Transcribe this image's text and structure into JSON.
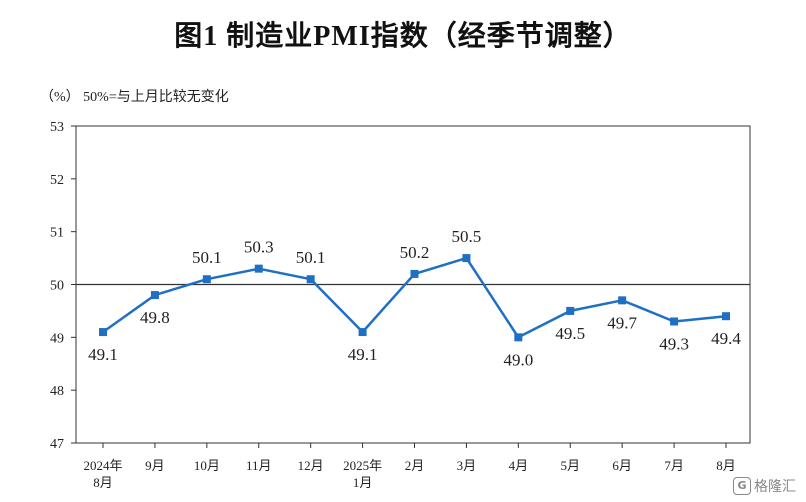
{
  "title": "图1  制造业PMI指数（经季节调整）",
  "unit_note": "（%）  50%=与上月比较无变化",
  "watermark": {
    "text": "格隆汇",
    "icon": "G"
  },
  "chart_data": {
    "type": "line",
    "categories": [
      [
        "2024年",
        "8月"
      ],
      [
        "9月"
      ],
      [
        "10月"
      ],
      [
        "11月"
      ],
      [
        "12月"
      ],
      [
        "2025年",
        "1月"
      ],
      [
        "2月"
      ],
      [
        "3月"
      ],
      [
        "4月"
      ],
      [
        "5月"
      ],
      [
        "6月"
      ],
      [
        "7月"
      ],
      [
        "8月"
      ]
    ],
    "values": [
      49.1,
      49.8,
      50.1,
      50.3,
      50.1,
      49.1,
      50.2,
      50.5,
      49.0,
      49.5,
      49.7,
      49.3,
      49.4
    ],
    "data_labels": [
      "49.1",
      "49.8",
      "50.1",
      "50.3",
      "50.1",
      "49.1",
      "50.2",
      "50.5",
      "49.0",
      "49.5",
      "49.7",
      "49.3",
      "49.4"
    ],
    "ylim": [
      47,
      53
    ],
    "yticks": [
      47,
      48,
      49,
      50,
      51,
      52,
      53
    ],
    "reference_line": 50,
    "line_color": "#1f6fc5",
    "grid": false,
    "xlabel": "",
    "ylabel": ""
  }
}
